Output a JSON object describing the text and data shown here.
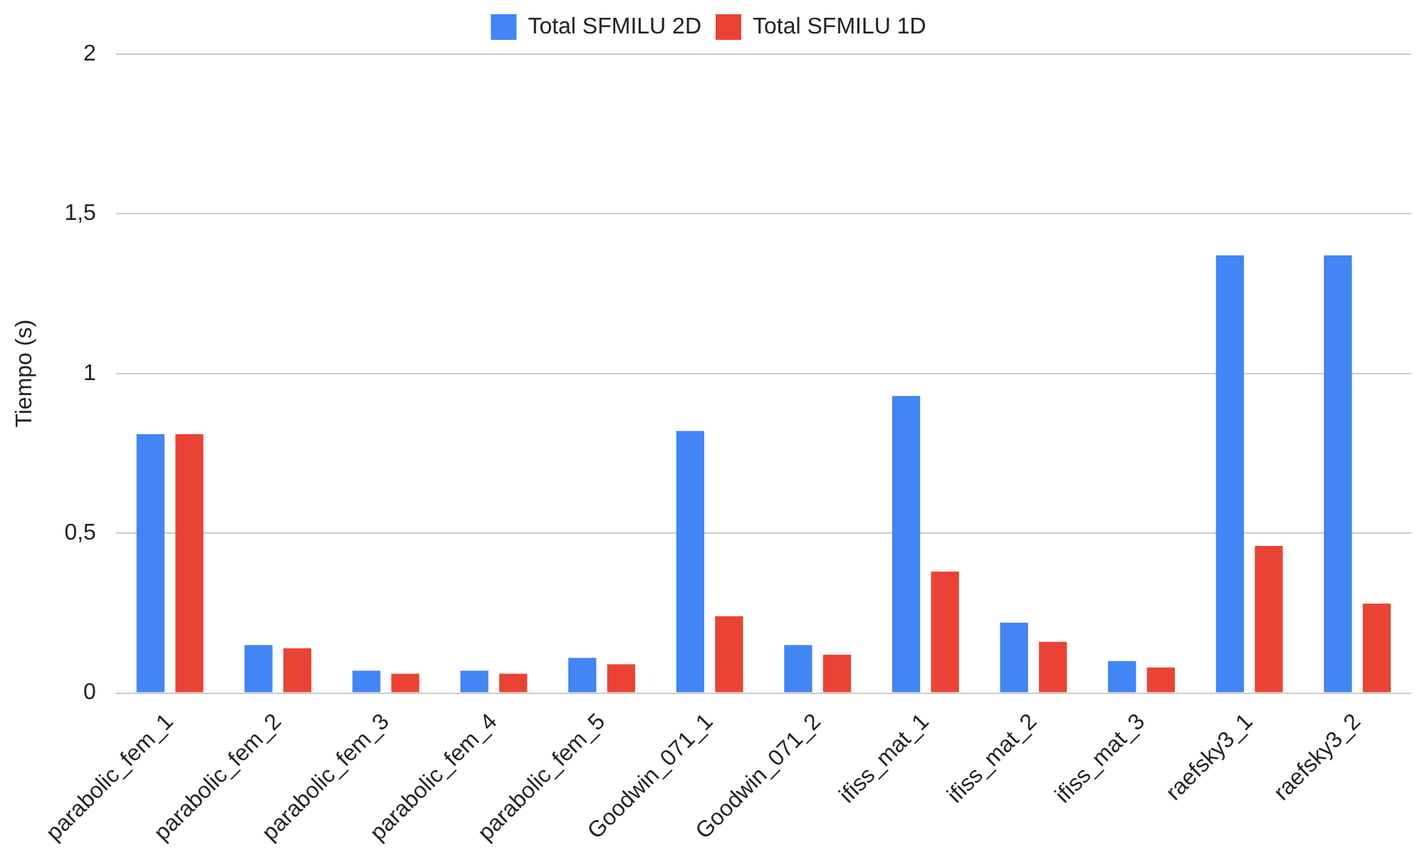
{
  "chart_data": {
    "type": "bar",
    "ylabel": "Tiempo (s)",
    "categories": [
      "parabolic_fem_1",
      "parabolic_fem_2",
      "parabolic_fem_3",
      "parabolic_fem_4",
      "parabolic_fem_5",
      "Goodwin_071_1",
      "Goodwin_071_2",
      "ifiss_mat_1",
      "ifiss_mat_2",
      "ifiss_mat_3",
      "raefsky3_1",
      "raefsky3_2"
    ],
    "series": [
      {
        "name": "Total SFMILU 2D",
        "color": "#4285f4",
        "values": [
          0.81,
          0.15,
          0.07,
          0.07,
          0.11,
          0.82,
          0.15,
          0.93,
          0.22,
          0.1,
          1.37,
          1.37
        ]
      },
      {
        "name": "Total SFMILU 1D",
        "color": "#ea4335",
        "values": [
          0.81,
          0.14,
          0.06,
          0.06,
          0.09,
          0.24,
          0.12,
          0.38,
          0.16,
          0.08,
          0.46,
          0.28
        ]
      }
    ],
    "ylim": [
      0,
      2
    ],
    "yticks": [
      0,
      {
        "value": 0.5,
        "label": "0,5"
      },
      1,
      {
        "value": 1.5,
        "label": "1,5"
      },
      2
    ],
    "grid": "y",
    "legend": "top"
  }
}
